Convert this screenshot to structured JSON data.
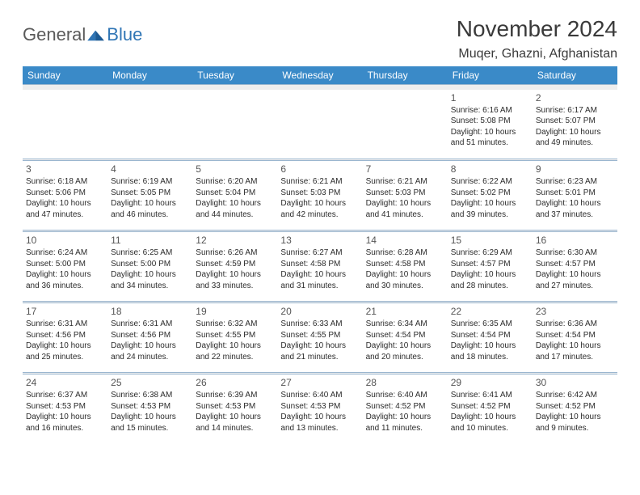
{
  "logo": {
    "text1": "General",
    "text2": "Blue"
  },
  "title": "November 2024",
  "location": "Muqer, Ghazni, Afghanistan",
  "dayHeaders": [
    "Sunday",
    "Monday",
    "Tuesday",
    "Wednesday",
    "Thursday",
    "Friday",
    "Saturday"
  ],
  "colors": {
    "headerBg": "#3a8ac8",
    "headerText": "#ffffff",
    "sepBg": "#eeeeee",
    "sepBorder": "#9bb6cf",
    "text": "#2b2b2b",
    "logoGray": "#5a5a5a",
    "logoBlue": "#2f75b5"
  },
  "weeks": [
    [
      null,
      null,
      null,
      null,
      null,
      {
        "n": "1",
        "sr": "Sunrise: 6:16 AM",
        "ss": "Sunset: 5:08 PM",
        "dl": "Daylight: 10 hours and 51 minutes."
      },
      {
        "n": "2",
        "sr": "Sunrise: 6:17 AM",
        "ss": "Sunset: 5:07 PM",
        "dl": "Daylight: 10 hours and 49 minutes."
      }
    ],
    [
      {
        "n": "3",
        "sr": "Sunrise: 6:18 AM",
        "ss": "Sunset: 5:06 PM",
        "dl": "Daylight: 10 hours and 47 minutes."
      },
      {
        "n": "4",
        "sr": "Sunrise: 6:19 AM",
        "ss": "Sunset: 5:05 PM",
        "dl": "Daylight: 10 hours and 46 minutes."
      },
      {
        "n": "5",
        "sr": "Sunrise: 6:20 AM",
        "ss": "Sunset: 5:04 PM",
        "dl": "Daylight: 10 hours and 44 minutes."
      },
      {
        "n": "6",
        "sr": "Sunrise: 6:21 AM",
        "ss": "Sunset: 5:03 PM",
        "dl": "Daylight: 10 hours and 42 minutes."
      },
      {
        "n": "7",
        "sr": "Sunrise: 6:21 AM",
        "ss": "Sunset: 5:03 PM",
        "dl": "Daylight: 10 hours and 41 minutes."
      },
      {
        "n": "8",
        "sr": "Sunrise: 6:22 AM",
        "ss": "Sunset: 5:02 PM",
        "dl": "Daylight: 10 hours and 39 minutes."
      },
      {
        "n": "9",
        "sr": "Sunrise: 6:23 AM",
        "ss": "Sunset: 5:01 PM",
        "dl": "Daylight: 10 hours and 37 minutes."
      }
    ],
    [
      {
        "n": "10",
        "sr": "Sunrise: 6:24 AM",
        "ss": "Sunset: 5:00 PM",
        "dl": "Daylight: 10 hours and 36 minutes."
      },
      {
        "n": "11",
        "sr": "Sunrise: 6:25 AM",
        "ss": "Sunset: 5:00 PM",
        "dl": "Daylight: 10 hours and 34 minutes."
      },
      {
        "n": "12",
        "sr": "Sunrise: 6:26 AM",
        "ss": "Sunset: 4:59 PM",
        "dl": "Daylight: 10 hours and 33 minutes."
      },
      {
        "n": "13",
        "sr": "Sunrise: 6:27 AM",
        "ss": "Sunset: 4:58 PM",
        "dl": "Daylight: 10 hours and 31 minutes."
      },
      {
        "n": "14",
        "sr": "Sunrise: 6:28 AM",
        "ss": "Sunset: 4:58 PM",
        "dl": "Daylight: 10 hours and 30 minutes."
      },
      {
        "n": "15",
        "sr": "Sunrise: 6:29 AM",
        "ss": "Sunset: 4:57 PM",
        "dl": "Daylight: 10 hours and 28 minutes."
      },
      {
        "n": "16",
        "sr": "Sunrise: 6:30 AM",
        "ss": "Sunset: 4:57 PM",
        "dl": "Daylight: 10 hours and 27 minutes."
      }
    ],
    [
      {
        "n": "17",
        "sr": "Sunrise: 6:31 AM",
        "ss": "Sunset: 4:56 PM",
        "dl": "Daylight: 10 hours and 25 minutes."
      },
      {
        "n": "18",
        "sr": "Sunrise: 6:31 AM",
        "ss": "Sunset: 4:56 PM",
        "dl": "Daylight: 10 hours and 24 minutes."
      },
      {
        "n": "19",
        "sr": "Sunrise: 6:32 AM",
        "ss": "Sunset: 4:55 PM",
        "dl": "Daylight: 10 hours and 22 minutes."
      },
      {
        "n": "20",
        "sr": "Sunrise: 6:33 AM",
        "ss": "Sunset: 4:55 PM",
        "dl": "Daylight: 10 hours and 21 minutes."
      },
      {
        "n": "21",
        "sr": "Sunrise: 6:34 AM",
        "ss": "Sunset: 4:54 PM",
        "dl": "Daylight: 10 hours and 20 minutes."
      },
      {
        "n": "22",
        "sr": "Sunrise: 6:35 AM",
        "ss": "Sunset: 4:54 PM",
        "dl": "Daylight: 10 hours and 18 minutes."
      },
      {
        "n": "23",
        "sr": "Sunrise: 6:36 AM",
        "ss": "Sunset: 4:54 PM",
        "dl": "Daylight: 10 hours and 17 minutes."
      }
    ],
    [
      {
        "n": "24",
        "sr": "Sunrise: 6:37 AM",
        "ss": "Sunset: 4:53 PM",
        "dl": "Daylight: 10 hours and 16 minutes."
      },
      {
        "n": "25",
        "sr": "Sunrise: 6:38 AM",
        "ss": "Sunset: 4:53 PM",
        "dl": "Daylight: 10 hours and 15 minutes."
      },
      {
        "n": "26",
        "sr": "Sunrise: 6:39 AM",
        "ss": "Sunset: 4:53 PM",
        "dl": "Daylight: 10 hours and 14 minutes."
      },
      {
        "n": "27",
        "sr": "Sunrise: 6:40 AM",
        "ss": "Sunset: 4:53 PM",
        "dl": "Daylight: 10 hours and 13 minutes."
      },
      {
        "n": "28",
        "sr": "Sunrise: 6:40 AM",
        "ss": "Sunset: 4:52 PM",
        "dl": "Daylight: 10 hours and 11 minutes."
      },
      {
        "n": "29",
        "sr": "Sunrise: 6:41 AM",
        "ss": "Sunset: 4:52 PM",
        "dl": "Daylight: 10 hours and 10 minutes."
      },
      {
        "n": "30",
        "sr": "Sunrise: 6:42 AM",
        "ss": "Sunset: 4:52 PM",
        "dl": "Daylight: 10 hours and 9 minutes."
      }
    ]
  ]
}
